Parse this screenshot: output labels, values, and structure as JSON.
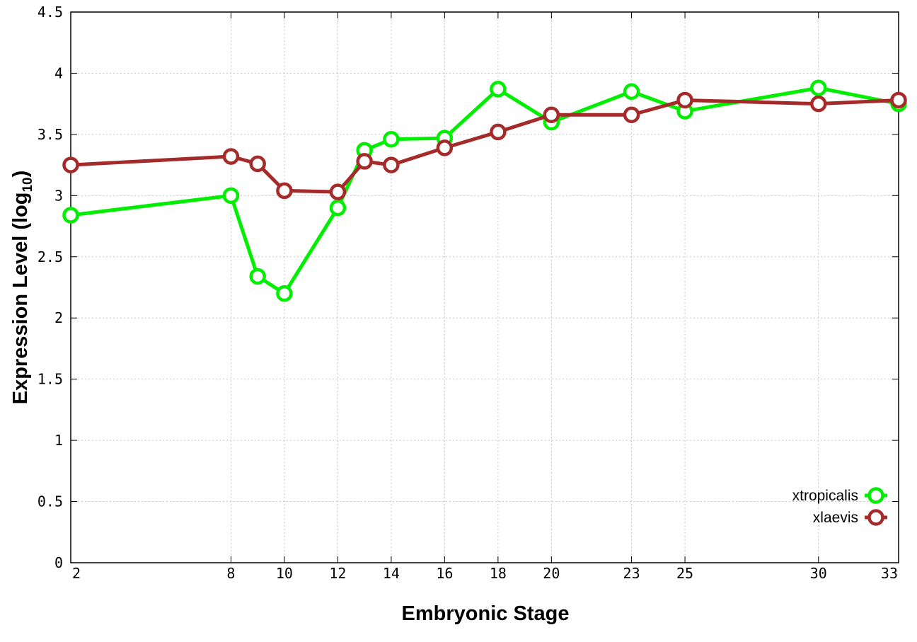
{
  "chart_data": {
    "type": "line",
    "xlabel": "Embryonic Stage",
    "ylabel": "Expression Level (log",
    "ylabel_sub": "10",
    "ylabel_close": ")",
    "xlim": [
      2,
      33
    ],
    "ylim": [
      0,
      4.5
    ],
    "x_ticks": [
      2,
      8,
      10,
      12,
      14,
      16,
      18,
      20,
      23,
      25,
      30,
      33
    ],
    "y_ticks": [
      0,
      0.5,
      1,
      1.5,
      2,
      2.5,
      3,
      3.5,
      4,
      4.5
    ],
    "y_tick_labels": [
      "0",
      "0.5",
      "1",
      "1.5",
      "2",
      "2.5",
      "3",
      "3.5",
      "4",
      "4.5"
    ],
    "grid": true,
    "legend_position": "bottom-right",
    "x": [
      2,
      8,
      9,
      10,
      12,
      13,
      14,
      16,
      18,
      20,
      23,
      25,
      30,
      33
    ],
    "series": [
      {
        "name": "xtropicalis",
        "color": "#00ee00",
        "values": [
          2.84,
          3.0,
          2.34,
          2.2,
          2.9,
          3.37,
          3.46,
          3.47,
          3.87,
          3.6,
          3.85,
          3.69,
          3.88,
          3.75
        ]
      },
      {
        "name": "xlaevis",
        "color": "#a52a2a",
        "values": [
          3.25,
          3.32,
          3.26,
          3.04,
          3.03,
          3.28,
          3.25,
          3.39,
          3.52,
          3.66,
          3.66,
          3.78,
          3.75,
          3.78
        ]
      }
    ]
  }
}
